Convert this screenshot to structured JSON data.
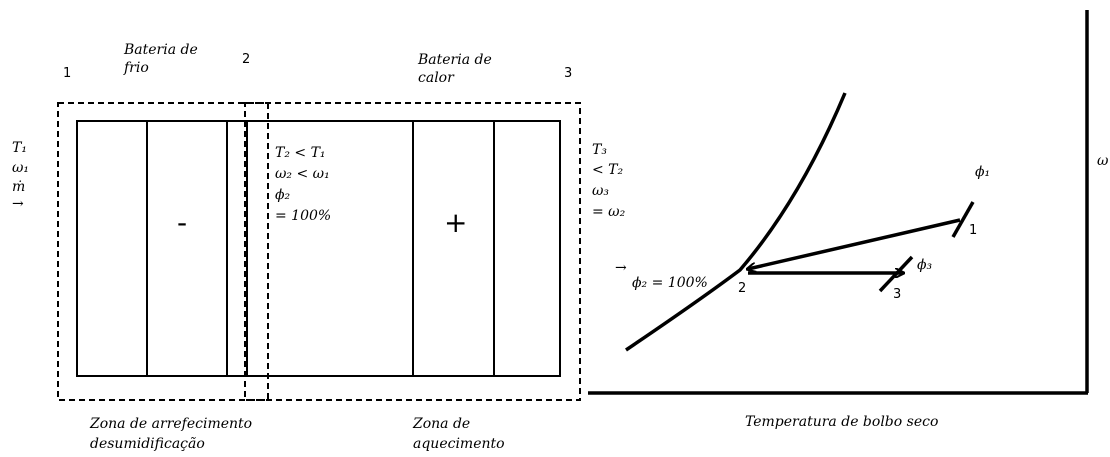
{
  "header": {
    "point_1": "1",
    "cooling_coil": [
      "Bateria de",
      "frio"
    ],
    "point_2": "2",
    "heating_coil": [
      "Bateria de",
      "calor"
    ],
    "point_3": "3"
  },
  "inlet": [
    "T₁",
    "ω₁",
    "ṁ",
    "→"
  ],
  "state_2": [
    "T₂ < T₁",
    "ω₂ < ω₁",
    "ϕ₂",
    "= 100%"
  ],
  "cooling_sign": "-",
  "heating_sign": "+",
  "outlet": [
    "T₃",
    "< T₂",
    "ω₃",
    "= ω₂"
  ],
  "chart": {
    "y_axis": "ω",
    "x_axis": "Temperatura de bolbo seco",
    "phi_1": "ϕ₁",
    "point_1": "1",
    "phi_3": "ϕ₃",
    "point_3": "3",
    "arrow": "→",
    "phi_2": "ϕ₂ = 100%",
    "point_2": "2"
  },
  "zones": {
    "cooling": [
      "Zona de arrefecimento",
      "desumidificação"
    ],
    "heating": [
      "Zona de",
      "aquecimento"
    ]
  }
}
